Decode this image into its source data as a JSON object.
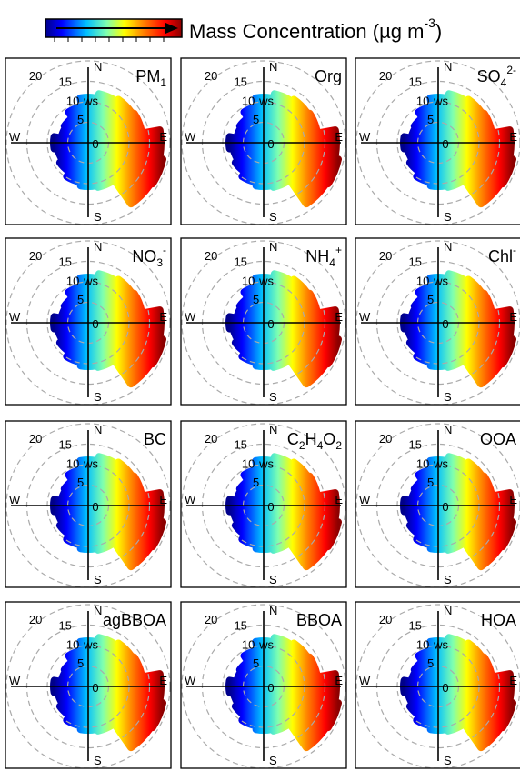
{
  "colorbar": {
    "title": {
      "text": "Mass Concentration (µg m",
      "sup": "-3",
      "close": ")"
    }
  },
  "radial_ticks": [
    0,
    5,
    10,
    15,
    20
  ],
  "radial_unit": "ws",
  "compass": [
    "N",
    "E",
    "S",
    "W"
  ],
  "panels": [
    {
      "label": {
        "text": "PM",
        "sub": "1"
      }
    },
    {
      "label": {
        "text": "Org"
      }
    },
    {
      "label": {
        "text": "SO",
        "sub": "4",
        "sup": "2-"
      }
    },
    {
      "label": {
        "text": "NO",
        "sub": "3",
        "sup": "-"
      }
    },
    {
      "label": {
        "text": "NH",
        "sub": "4",
        "sup": "+"
      }
    },
    {
      "label": {
        "text": "Chl",
        "sup": "-"
      }
    },
    {
      "label": {
        "text": "BC"
      }
    },
    {
      "label": {
        "text": "C",
        "sub": "2",
        "text2": "H",
        "sub2": "4",
        "text3": "O",
        "sub3": "2"
      }
    },
    {
      "label": {
        "text": "OOA"
      }
    },
    {
      "label": {
        "text": "agBBOA"
      }
    },
    {
      "label": {
        "text": "BBOA"
      }
    },
    {
      "label": {
        "text": "HOA"
      }
    }
  ]
}
